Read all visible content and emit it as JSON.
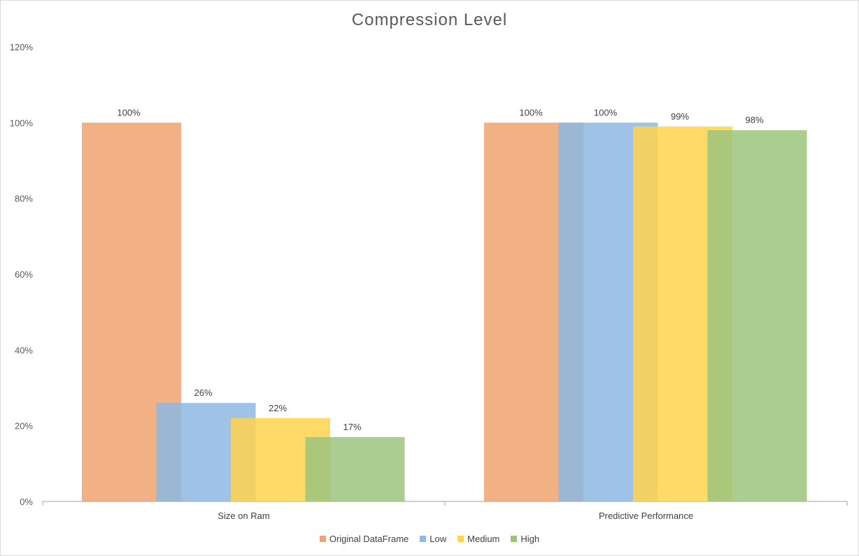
{
  "chart_data": {
    "type": "bar",
    "title": "Compression Level",
    "categories": [
      "Size on Ram",
      "Predictive Performance"
    ],
    "series": [
      {
        "name": "Original DataFrame",
        "values": [
          100,
          100
        ],
        "labels": [
          "100%",
          "100%"
        ],
        "color": "#F0A36E"
      },
      {
        "name": "Low",
        "values": [
          26,
          100
        ],
        "labels": [
          "26%",
          "100%"
        ],
        "color": "#8DB9E2"
      },
      {
        "name": "Medium",
        "values": [
          22,
          99
        ],
        "labels": [
          "22%",
          "99%"
        ],
        "color": "#FFD44F"
      },
      {
        "name": "High",
        "values": [
          17,
          98
        ],
        "labels": [
          "17%",
          "98%"
        ],
        "color": "#9CC47E"
      }
    ],
    "yticks": [
      "0%",
      "20%",
      "40%",
      "60%",
      "80%",
      "100%",
      "120%"
    ],
    "ylim": [
      0,
      120
    ],
    "xlabel": "",
    "ylabel": "",
    "grid": false,
    "legend_position": "bottom",
    "bar_opacity": 0.85
  }
}
